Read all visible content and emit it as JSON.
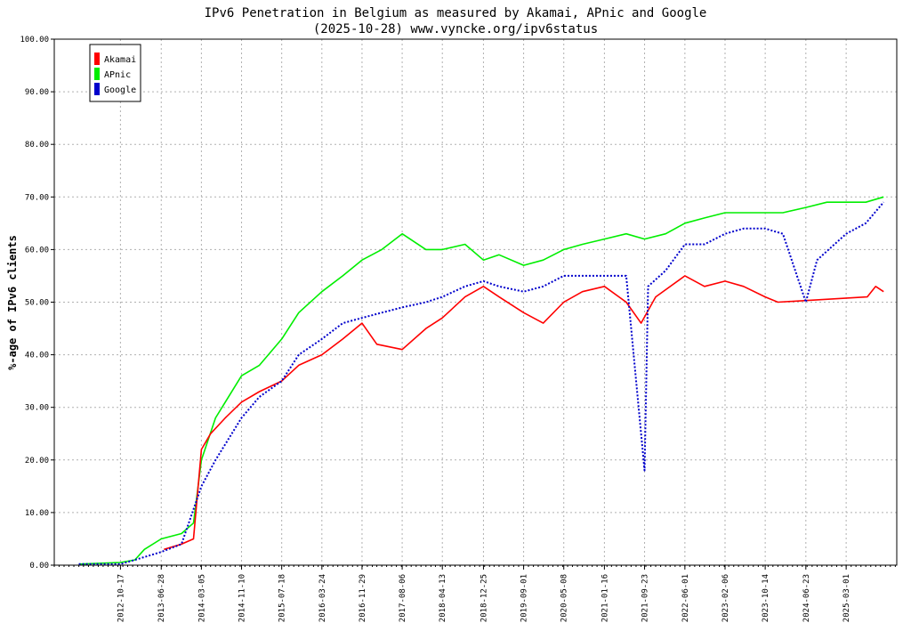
{
  "chart_data": {
    "type": "line",
    "title": "IPv6 Penetration in Belgium as measured by Akamai, APnic and Google",
    "subtitle": "(2025-10-28) www.vyncke.org/ipv6status",
    "xlabel": "",
    "ylabel": "%-age of IPv6 clients",
    "ylim": [
      0,
      100
    ],
    "xlim": [
      "2011-09-01",
      "2026-01-10"
    ],
    "grid": true,
    "legend_position": "top-left",
    "y_ticks": [
      "0.00",
      "10.00",
      "20.00",
      "30.00",
      "40.00",
      "50.00",
      "60.00",
      "70.00",
      "80.00",
      "90.00",
      "100.00"
    ],
    "x_ticks": [
      "2012-10-17",
      "2013-06-28",
      "2014-03-05",
      "2014-11-10",
      "2015-07-18",
      "2016-03-24",
      "2016-11-29",
      "2017-08-06",
      "2018-04-13",
      "2018-12-25",
      "2019-09-01",
      "2020-05-08",
      "2021-01-16",
      "2021-09-23",
      "2022-06-01",
      "2023-02-06",
      "2023-10-14",
      "2024-06-23",
      "2025-03-01"
    ],
    "series": [
      {
        "name": "Akamai",
        "color": "#ff0000",
        "style": "solid",
        "points": [
          [
            "2013-07-15",
            3.0
          ],
          [
            "2013-11-01",
            4.0
          ],
          [
            "2014-01-15",
            5.0
          ],
          [
            "2014-03-05",
            22.0
          ],
          [
            "2014-05-01",
            25.0
          ],
          [
            "2014-08-01",
            28.0
          ],
          [
            "2014-11-10",
            31.0
          ],
          [
            "2015-03-01",
            33.0
          ],
          [
            "2015-07-18",
            35.0
          ],
          [
            "2015-11-01",
            38.0
          ],
          [
            "2016-03-24",
            40.0
          ],
          [
            "2016-08-01",
            43.0
          ],
          [
            "2016-11-29",
            46.0
          ],
          [
            "2017-03-01",
            42.0
          ],
          [
            "2017-08-06",
            41.0
          ],
          [
            "2018-01-01",
            45.0
          ],
          [
            "2018-04-13",
            47.0
          ],
          [
            "2018-09-01",
            51.0
          ],
          [
            "2018-12-25",
            53.0
          ],
          [
            "2019-04-01",
            51.0
          ],
          [
            "2019-09-01",
            48.0
          ],
          [
            "2020-01-01",
            46.0
          ],
          [
            "2020-05-08",
            50.0
          ],
          [
            "2020-09-01",
            52.0
          ],
          [
            "2021-01-16",
            53.0
          ],
          [
            "2021-06-01",
            50.0
          ],
          [
            "2021-09-01",
            46.0
          ],
          [
            "2021-12-01",
            51.0
          ],
          [
            "2022-06-01",
            55.0
          ],
          [
            "2022-10-01",
            53.0
          ],
          [
            "2023-02-06",
            54.0
          ],
          [
            "2023-06-01",
            53.0
          ],
          [
            "2023-10-14",
            51.0
          ],
          [
            "2024-01-01",
            50.0
          ],
          [
            "2025-07-10",
            51.0
          ],
          [
            "2025-09-01",
            53.0
          ],
          [
            "2025-10-20",
            52.0
          ]
        ]
      },
      {
        "name": "APnic",
        "color": "#00ee00",
        "style": "solid",
        "points": [
          [
            "2012-02-01",
            0.2
          ],
          [
            "2012-10-17",
            0.5
          ],
          [
            "2013-01-15",
            1.0
          ],
          [
            "2013-03-15",
            3.0
          ],
          [
            "2013-06-28",
            5.0
          ],
          [
            "2013-11-01",
            6.0
          ],
          [
            "2014-01-15",
            8.0
          ],
          [
            "2014-03-05",
            20.0
          ],
          [
            "2014-06-01",
            28.0
          ],
          [
            "2014-11-10",
            36.0
          ],
          [
            "2015-03-01",
            38.0
          ],
          [
            "2015-07-18",
            43.0
          ],
          [
            "2015-11-01",
            48.0
          ],
          [
            "2016-03-24",
            52.0
          ],
          [
            "2016-08-01",
            55.0
          ],
          [
            "2016-11-29",
            58.0
          ],
          [
            "2017-04-01",
            60.0
          ],
          [
            "2017-08-06",
            63.0
          ],
          [
            "2018-01-01",
            60.0
          ],
          [
            "2018-04-13",
            60.0
          ],
          [
            "2018-09-01",
            61.0
          ],
          [
            "2018-12-25",
            58.0
          ],
          [
            "2019-04-01",
            59.0
          ],
          [
            "2019-09-01",
            57.0
          ],
          [
            "2020-01-01",
            58.0
          ],
          [
            "2020-05-08",
            60.0
          ],
          [
            "2020-09-01",
            61.0
          ],
          [
            "2021-01-16",
            62.0
          ],
          [
            "2021-06-01",
            63.0
          ],
          [
            "2021-09-23",
            62.0
          ],
          [
            "2022-02-01",
            63.0
          ],
          [
            "2022-06-01",
            65.0
          ],
          [
            "2022-10-01",
            66.0
          ],
          [
            "2023-02-06",
            67.0
          ],
          [
            "2023-06-01",
            67.0
          ],
          [
            "2023-10-14",
            67.0
          ],
          [
            "2024-02-01",
            67.0
          ],
          [
            "2024-06-23",
            68.0
          ],
          [
            "2024-11-01",
            69.0
          ],
          [
            "2025-03-01",
            69.0
          ],
          [
            "2025-07-01",
            69.0
          ],
          [
            "2025-10-20",
            70.0
          ]
        ]
      },
      {
        "name": "Google",
        "color": "#0000cc",
        "style": "dotted",
        "points": [
          [
            "2012-02-01",
            0.2
          ],
          [
            "2012-10-17",
            0.2
          ],
          [
            "2013-01-15",
            1.0
          ],
          [
            "2013-06-28",
            2.5
          ],
          [
            "2013-11-01",
            4.0
          ],
          [
            "2014-03-05",
            15.0
          ],
          [
            "2014-06-01",
            20.0
          ],
          [
            "2014-11-10",
            28.0
          ],
          [
            "2015-03-01",
            32.0
          ],
          [
            "2015-07-18",
            35.0
          ],
          [
            "2015-11-01",
            40.0
          ],
          [
            "2016-03-24",
            43.0
          ],
          [
            "2016-08-01",
            46.0
          ],
          [
            "2016-11-29",
            47.0
          ],
          [
            "2017-04-01",
            48.0
          ],
          [
            "2017-08-06",
            49.0
          ],
          [
            "2018-01-01",
            50.0
          ],
          [
            "2018-04-13",
            51.0
          ],
          [
            "2018-09-01",
            53.0
          ],
          [
            "2018-12-25",
            54.0
          ],
          [
            "2019-04-01",
            53.0
          ],
          [
            "2019-09-01",
            52.0
          ],
          [
            "2020-01-01",
            53.0
          ],
          [
            "2020-05-08",
            55.0
          ],
          [
            "2020-09-01",
            55.0
          ],
          [
            "2021-01-16",
            55.0
          ],
          [
            "2021-06-01",
            55.0
          ],
          [
            "2021-09-23",
            18.0
          ],
          [
            "2021-10-15",
            53.0
          ],
          [
            "2022-02-01",
            56.0
          ],
          [
            "2022-06-01",
            61.0
          ],
          [
            "2022-10-01",
            61.0
          ],
          [
            "2023-02-06",
            63.0
          ],
          [
            "2023-06-01",
            64.0
          ],
          [
            "2023-10-14",
            64.0
          ],
          [
            "2024-02-01",
            63.0
          ],
          [
            "2024-06-23",
            50.0
          ],
          [
            "2024-09-01",
            58.0
          ],
          [
            "2025-03-01",
            63.0
          ],
          [
            "2025-07-01",
            65.0
          ],
          [
            "2025-10-20",
            69.0
          ]
        ]
      }
    ]
  }
}
